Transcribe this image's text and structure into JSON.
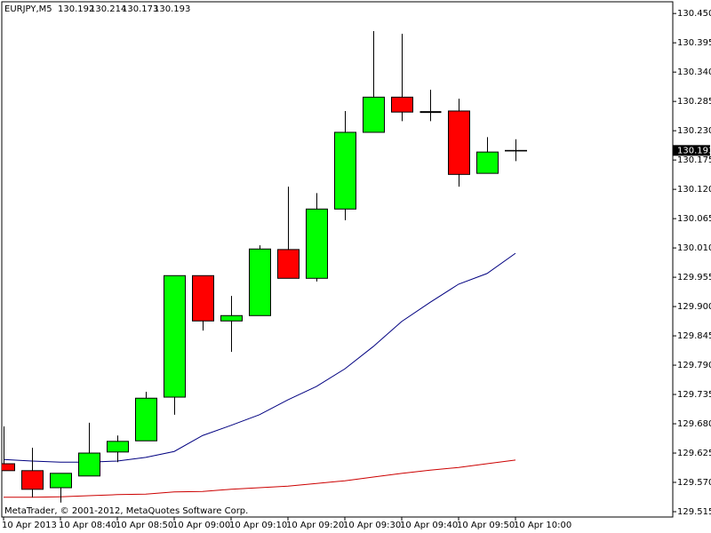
{
  "chart_data": {
    "type": "candlestick",
    "title": "EURJPY,M5",
    "footer": "MetaTrader, © 2001-2012, MetaQuotes Software Corp.",
    "categories": [
      "10 Apr 2013",
      null,
      "10 Apr 08:40",
      null,
      "10 Apr 08:50",
      null,
      "10 Apr 09:00",
      null,
      "10 Apr 09:10",
      null,
      "10 Apr 09:20",
      null,
      "10 Apr 09:30",
      null,
      "10 Apr 09:40",
      null,
      "10 Apr 09:50",
      null,
      "10 Apr 10:00"
    ],
    "open": [
      129.605,
      129.592,
      129.56,
      129.582,
      129.627,
      129.648,
      129.73,
      129.958,
      129.873,
      129.883,
      130.007,
      129.953,
      130.083,
      130.227,
      130.293,
      130.265,
      130.267,
      130.15,
      130.192
    ],
    "high": [
      129.675,
      129.635,
      129.587,
      129.682,
      129.658,
      129.74,
      129.958,
      129.958,
      129.92,
      130.015,
      130.125,
      130.113,
      130.267,
      130.417,
      130.412,
      130.307,
      130.29,
      130.218,
      130.214
    ],
    "low": [
      129.592,
      129.542,
      129.532,
      129.582,
      129.608,
      129.648,
      129.697,
      129.855,
      129.815,
      129.883,
      129.953,
      129.947,
      130.062,
      130.227,
      130.248,
      130.248,
      130.125,
      130.15,
      130.173
    ],
    "close": [
      129.592,
      129.557,
      129.587,
      129.625,
      129.647,
      129.728,
      129.958,
      129.873,
      129.883,
      130.008,
      129.953,
      130.083,
      130.227,
      130.293,
      130.265,
      130.265,
      130.148,
      130.19,
      130.193
    ],
    "up_color": "#00ff00",
    "down_color": "#ff0000",
    "lines": [
      {
        "color": "#000080",
        "values": [
          129.613,
          129.61,
          129.608,
          129.608,
          129.61,
          129.617,
          129.628,
          129.658,
          129.677,
          129.697,
          129.725,
          129.75,
          129.783,
          129.825,
          129.872,
          129.908,
          129.942,
          129.962,
          130.0
        ]
      },
      {
        "color": "#cc0000",
        "values": [
          129.542,
          129.542,
          129.543,
          129.545,
          129.547,
          129.548,
          129.552,
          129.553,
          129.557,
          129.56,
          129.563,
          129.568,
          129.573,
          129.58,
          129.587,
          129.593,
          129.598,
          129.605,
          129.612
        ]
      }
    ],
    "ylim": [
      129.505,
      130.472
    ],
    "yticks": [
      {
        "value": 130.45,
        "label": "130.450"
      },
      130.395,
      {
        "value": 130.34,
        "label": "130.340"
      },
      130.285,
      {
        "value": 130.23,
        "label": "130.230"
      },
      130.175,
      {
        "value": 130.12,
        "label": "130.120"
      },
      130.065,
      {
        "value": 130.01,
        "label": "130.010"
      },
      129.955,
      {
        "value": 129.9,
        "label": "129.900"
      },
      129.845,
      {
        "value": 129.79,
        "label": "129.790"
      },
      129.735,
      {
        "value": 129.68,
        "label": "129.680"
      },
      129.625,
      {
        "value": 129.57,
        "label": "129.570"
      },
      129.515
    ]
  }
}
